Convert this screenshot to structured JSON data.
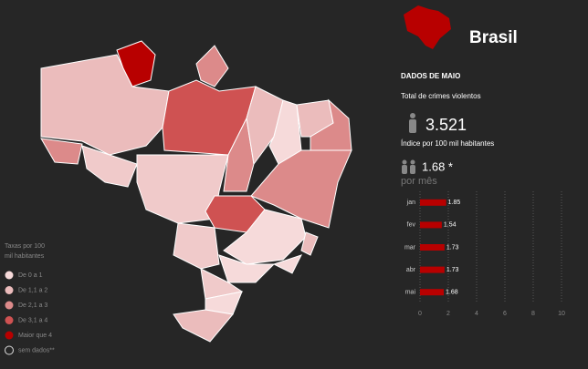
{
  "header": {
    "title": "Brasil"
  },
  "summary": {
    "heading": "DADOS DE MAIO",
    "total_label": "Total de crimes violentos",
    "total_value": "3.521",
    "index_label": "Índice por 100 mil habitantes",
    "index_value": "1.68 *",
    "monthly_label": "por mês"
  },
  "legend": {
    "title": "Taxas por 100 mil habitantes",
    "items": [
      {
        "label": "De 0 a 1",
        "color": "#f6dada"
      },
      {
        "label": "De 1,1 a 2",
        "color": "#ebbcbc"
      },
      {
        "label": "De 2,1 a 3",
        "color": "#dc8a8a"
      },
      {
        "label": "De 3,1 a 4",
        "color": "#cf5252"
      },
      {
        "label": "Maior que 4",
        "color": "#b80000"
      },
      {
        "label": "sem dados**",
        "color": "#262626"
      }
    ]
  },
  "chart_data": {
    "type": "bar",
    "orientation": "horizontal",
    "categories": [
      "jan",
      "fev",
      "mar",
      "abr",
      "mai"
    ],
    "values": [
      1.85,
      1.54,
      1.73,
      1.73,
      1.68
    ],
    "color": "#b80000",
    "xlim": [
      0,
      10
    ],
    "xticks": [
      0,
      2,
      4,
      6,
      8,
      10
    ],
    "grid": true
  }
}
